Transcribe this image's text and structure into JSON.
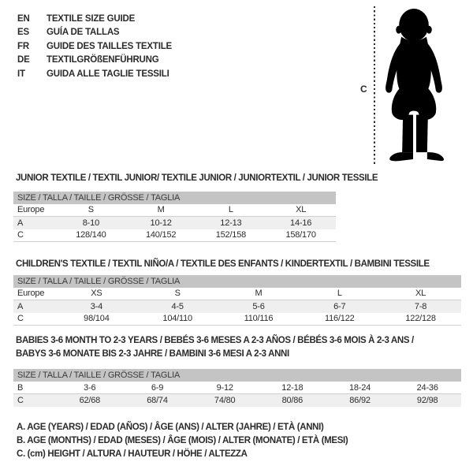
{
  "languages": [
    {
      "code": "EN",
      "title": "TEXTILE SIZE GUIDE"
    },
    {
      "code": "ES",
      "title": "GUÍA DE TALLAS"
    },
    {
      "code": "FR",
      "title": "GUIDE DES TAILLES TEXTILE"
    },
    {
      "code": "DE",
      "title": "TEXTILGRÖßENFÜHRUNG"
    },
    {
      "code": "IT",
      "title": "GUIDA ALLE TAGLIE TESSILI"
    }
  ],
  "figure": {
    "label": "C"
  },
  "sections": [
    {
      "id": "junior",
      "title_lines": [
        "JUNIOR TEXTILE / TEXTIL JUNIOR/ TEXTILE JUNIOR / JUNIORTEXTIL / JUNIOR TESSILE"
      ],
      "size_header": "SIZE / TALLA / TAILLE / GRÖSSE / TAGLIA",
      "rows": [
        {
          "label": "Europe",
          "values": [
            "S",
            "M",
            "L",
            "XL"
          ]
        },
        {
          "label": "A",
          "values": [
            "8-10",
            "10-12",
            "12-13",
            "14-16"
          ]
        },
        {
          "label": "C",
          "values": [
            "128/140",
            "140/152",
            "152/158",
            "158/170"
          ]
        }
      ]
    },
    {
      "id": "children",
      "title_lines": [
        "CHILDREN'S TEXTILE / TEXTIL NIÑO/A / TEXTILE DES ENFANTS / KINDERTEXTIL / BAMBINI TESSILE"
      ],
      "size_header": "SIZE / TALLA / TAILLE / GRÖSSE / TAGLIA",
      "rows": [
        {
          "label": "Europe",
          "values": [
            "XS",
            "S",
            "M",
            "L",
            "XL"
          ]
        },
        {
          "label": "A",
          "values": [
            "3-4",
            "4-5",
            "5-6",
            "6-7",
            "7-8"
          ]
        },
        {
          "label": "C",
          "values": [
            "98/104",
            "104/110",
            "110/116",
            "116/122",
            "122/128"
          ]
        }
      ]
    },
    {
      "id": "babies",
      "title_lines": [
        "BABIES 3-6 MONTH TO 2-3 YEARS / BEBÉS 3-6 MESES A 2-3 AÑOS / BÉBÉS 3-6 MOIS À 2-3 ANS /",
        "BABYS 3-6 MONATE BIS 2-3 JAHRE / BAMBINI 3-6 MESI A 2-3 ANNI"
      ],
      "size_header": "SIZE / TALLA / TAILLE / GRÖSSE / TAGLIA",
      "rows": [
        {
          "label": "B",
          "values": [
            "3-6",
            "6-9",
            "9-12",
            "12-18",
            "18-24",
            "24-36"
          ]
        },
        {
          "label": "C",
          "values": [
            "62/68",
            "68/74",
            "74/80",
            "80/86",
            "86/92",
            "92/98"
          ]
        }
      ]
    }
  ],
  "footnotes": [
    "A. AGE (YEARS) / EDAD (AÑOS) / ÂGE (ANS) / ALTER (JAHRE) / ETÀ (ANNI)",
    "B. AGE (MONTHS) / EDAD (MESES) / ÂGE (MOIS) / ALTER (MONATE) / ETÀ (MESI)",
    "C. (cm) HEIGHT / ALTURA / HAUTEUR / HÖHE / ALTEZZA"
  ],
  "colors": {
    "header_bar": "#c4c4c4",
    "shaded_row": "#efefef",
    "text": "#2b2b2b",
    "silhouette": "#000000"
  }
}
